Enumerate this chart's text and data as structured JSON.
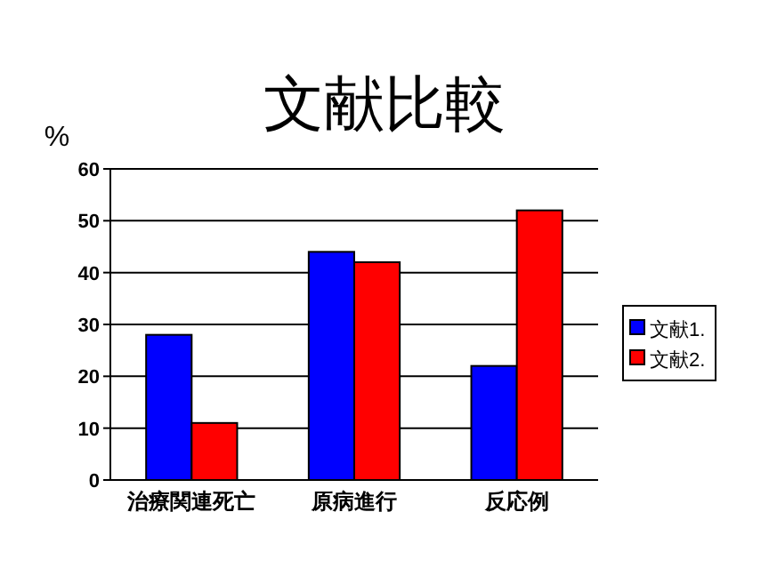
{
  "chart_data": {
    "type": "bar",
    "title": "文献比較",
    "ylabel": "%",
    "categories": [
      "治療関連死亡",
      "原病進行",
      "反応例"
    ],
    "series": [
      {
        "name": "文献1.",
        "color": "#0000ff",
        "values": [
          28,
          44,
          22
        ]
      },
      {
        "name": "文献2.",
        "color": "#ff0000",
        "values": [
          11,
          42,
          52
        ]
      }
    ],
    "ylim": [
      0,
      60
    ],
    "yticks": [
      0,
      10,
      20,
      30,
      40,
      50,
      60
    ],
    "grid": "y",
    "legend": "right"
  }
}
